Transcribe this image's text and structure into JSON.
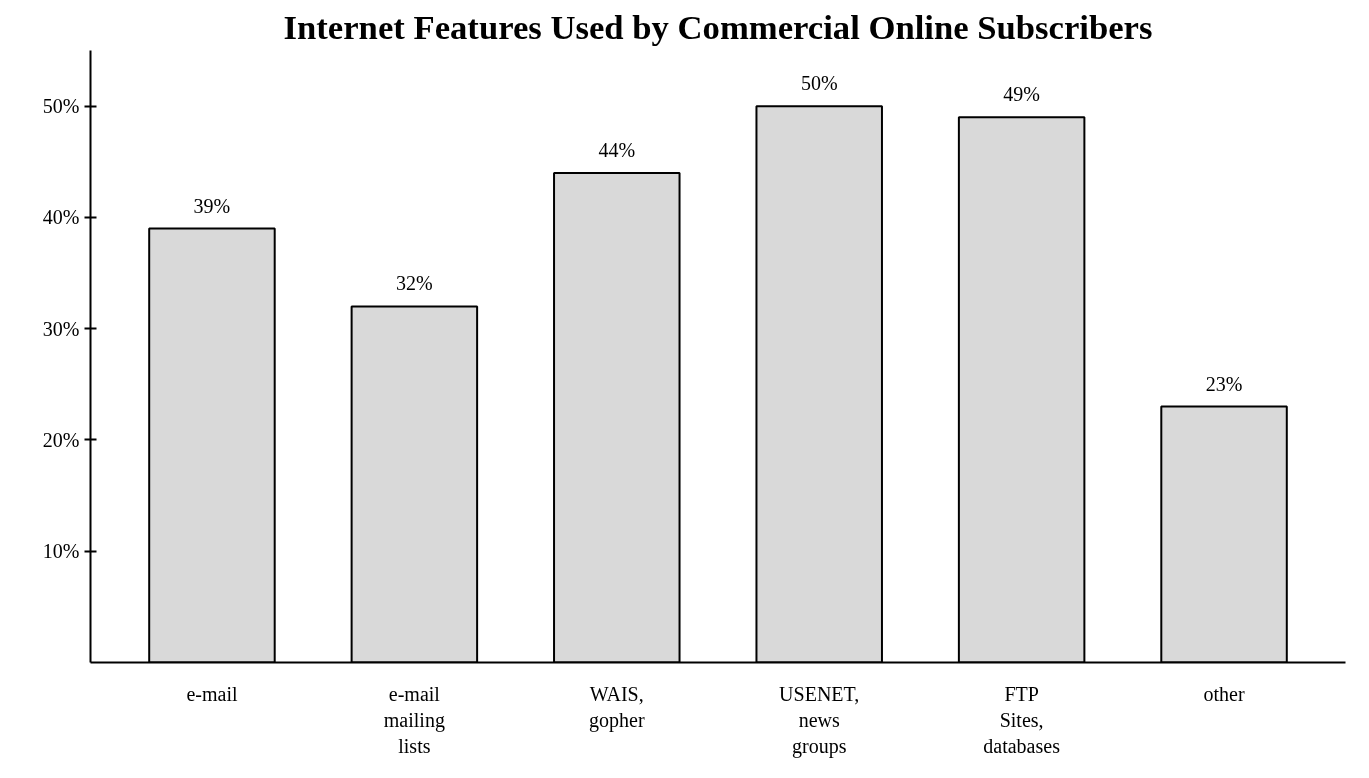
{
  "chart_data": {
    "type": "bar",
    "title": "Internet Features Used by Commercial Online Subscribers",
    "categories": [
      "e-mail",
      "e-mail\nmailing\nlists",
      "WAIS,\ngopher",
      "USENET,\nnews\ngroups",
      "FTP\nSites,\ndatabases",
      "other"
    ],
    "values": [
      39,
      32,
      44,
      50,
      49,
      23
    ],
    "value_labels": [
      "39%",
      "32%",
      "44%",
      "50%",
      "49%",
      "23%"
    ],
    "color": "#d9d9d9",
    "ylim": [
      0,
      55
    ],
    "yticks": [
      {
        "value": 10,
        "label": "10%"
      },
      {
        "value": 20,
        "label": "20%"
      },
      {
        "value": 30,
        "label": "30%"
      },
      {
        "value": 40,
        "label": "40%"
      },
      {
        "value": 50,
        "label": "50%"
      }
    ],
    "grid": false
  }
}
